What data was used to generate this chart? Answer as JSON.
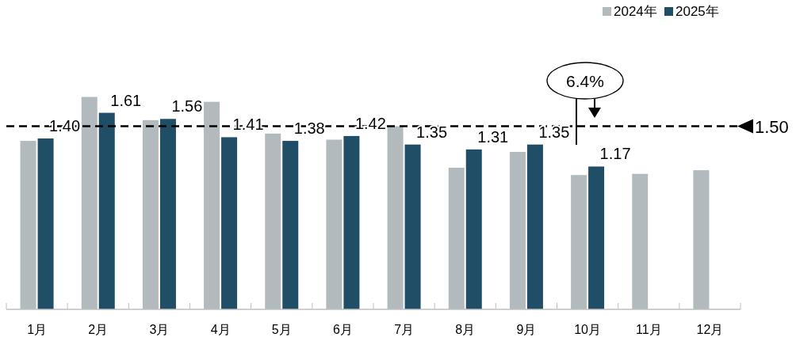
{
  "chart_data": {
    "type": "bar",
    "categories": [
      "1月",
      "2月",
      "3月",
      "4月",
      "5月",
      "6月",
      "7月",
      "8月",
      "9月",
      "10月",
      "11月",
      "12月"
    ],
    "series": [
      {
        "name": "2024年",
        "color": "#b3babe",
        "values": [
          1.38,
          1.74,
          1.55,
          1.7,
          1.44,
          1.39,
          1.5,
          1.16,
          1.29,
          1.1,
          1.11,
          1.14
        ]
      },
      {
        "name": "2025年",
        "color": "#1f4e66",
        "values": [
          1.4,
          1.61,
          1.56,
          1.41,
          1.38,
          1.42,
          1.35,
          1.31,
          1.35,
          1.17,
          null,
          null
        ],
        "value_labels": [
          "1.40",
          "1.61",
          "1.56",
          "1.41",
          "1.38",
          "1.42",
          "1.35",
          "1.31",
          "1.35",
          "1.17",
          null,
          null
        ]
      }
    ],
    "ref_lines": [
      {
        "axis": "y",
        "value": 1.5,
        "label": "1.50",
        "color": "#000000",
        "line_style": "dashed"
      }
    ],
    "annotations": [
      "6.4%"
    ],
    "legend": "top right"
  }
}
